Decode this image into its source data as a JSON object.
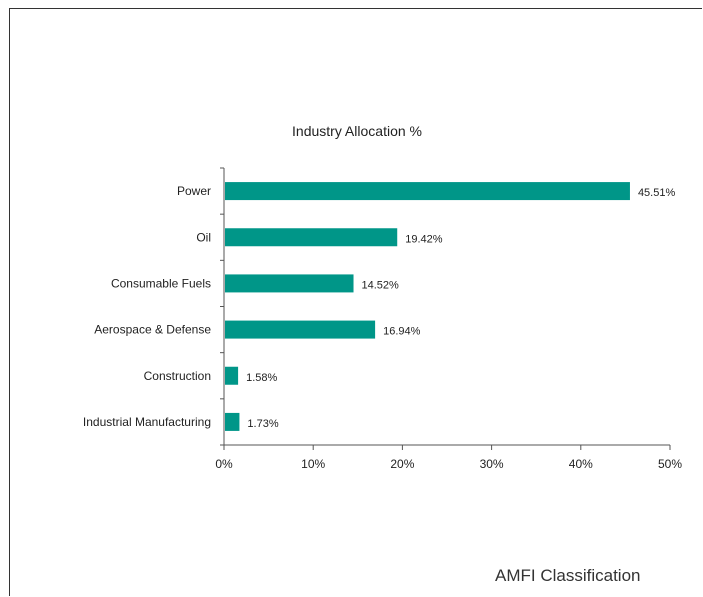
{
  "chart_data": {
    "type": "bar",
    "orientation": "horizontal",
    "title": "Industry Allocation %",
    "categories": [
      "Power",
      "Oil",
      "Consumable Fuels",
      "Aerospace & Defense",
      "Construction",
      "Industrial Manufacturing"
    ],
    "values": [
      45.51,
      19.42,
      14.52,
      16.94,
      1.58,
      1.73
    ],
    "value_labels": [
      "45.51%",
      "19.42%",
      "14.52%",
      "16.94%",
      "1.58%",
      "1.73%"
    ],
    "xlim": [
      0,
      50
    ],
    "xticks": [
      0,
      10,
      20,
      30,
      40,
      50
    ],
    "xtick_labels": [
      "0%",
      "10%",
      "20%",
      "30%",
      "40%",
      "50%"
    ],
    "xlabel": "",
    "ylabel": "",
    "bar_color": "#009688",
    "grid": false,
    "legend": "none"
  },
  "footer": {
    "text": "AMFI Classification"
  }
}
